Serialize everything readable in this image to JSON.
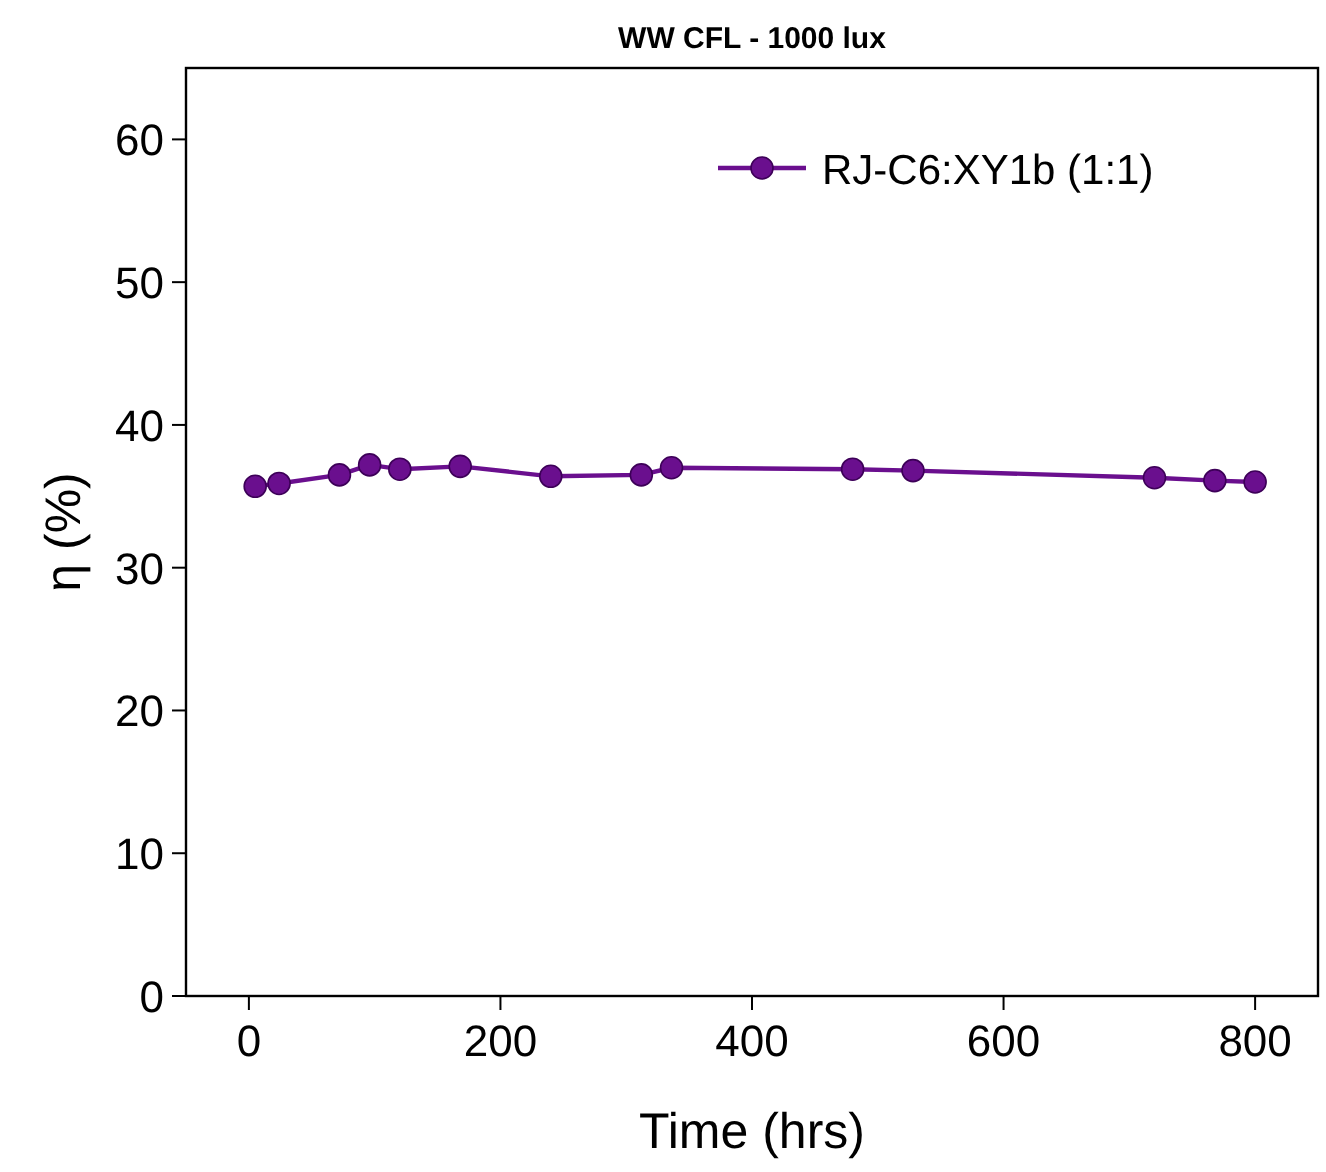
{
  "chart_data": {
    "type": "line",
    "title": "WW CFL - 1000 lux",
    "xlabel": "Time (hrs)",
    "ylabel": "η (%)",
    "x": [
      5,
      24,
      72,
      96,
      120,
      168,
      240,
      312,
      336,
      480,
      528,
      720,
      768,
      800
    ],
    "series": [
      {
        "name": "RJ-C6:XY1b (1:1)",
        "color": "#6a0f8e",
        "values": [
          35.7,
          35.9,
          36.5,
          37.2,
          36.9,
          37.1,
          36.4,
          36.5,
          37.0,
          36.9,
          36.8,
          36.3,
          36.1,
          36.0
        ]
      }
    ],
    "xlim": [
      -50,
      850
    ],
    "xticks": [
      0,
      200,
      400,
      600,
      800
    ],
    "ylim": [
      0,
      65
    ],
    "yticks": [
      0,
      10,
      20,
      30,
      40,
      50,
      60
    ],
    "grid": false,
    "legend": "top right",
    "marker": "circle",
    "line_style": "solid"
  }
}
